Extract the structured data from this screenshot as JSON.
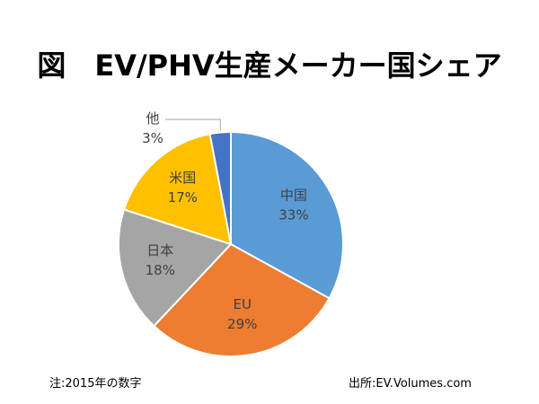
{
  "chart_data": {
    "type": "pie",
    "title": "図　EV/PHV生産メーカー国シェア",
    "slices": [
      {
        "label": "中国",
        "value": 33,
        "display": "33%",
        "color": "#5B9BD5"
      },
      {
        "label": "EU",
        "value": 29,
        "display": "29%",
        "color": "#ED7D31"
      },
      {
        "label": "日本",
        "value": 18,
        "display": "18%",
        "color": "#A5A5A5"
      },
      {
        "label": "米国",
        "value": 17,
        "display": "17%",
        "color": "#FFC000"
      },
      {
        "label": "他",
        "value": 3,
        "display": "3%",
        "color": "#4472C4"
      }
    ],
    "start_angle": "top, clockwise"
  },
  "footer": {
    "note": "注:2015年の数字",
    "source": "出所:EV.Volumes.com"
  }
}
